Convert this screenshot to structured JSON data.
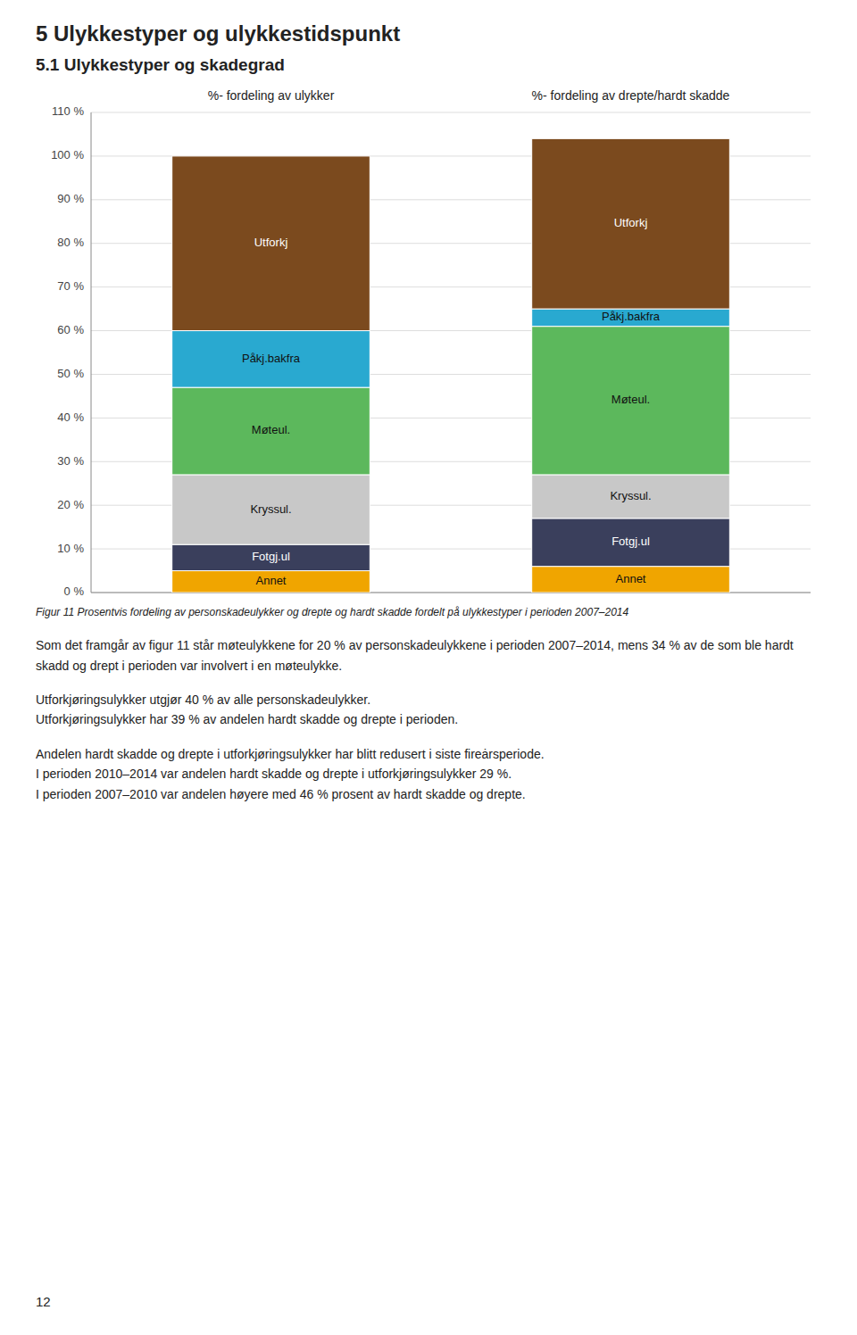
{
  "chart_data": {
    "type": "bar",
    "stacked": true,
    "title": "5 Ulykkestyper og ulykkestidspunkt",
    "subtitle": "5.1 Ulykkestyper og skadegrad",
    "categories": [
      "%- fordeling av ulykker",
      "%- fordeling av drepte/hardt skadde"
    ],
    "series": [
      {
        "name": "Annet",
        "color": "#f0a500",
        "values": [
          5,
          6
        ]
      },
      {
        "name": "Fotgj.ul",
        "color": "#3a3f5c",
        "values": [
          6,
          11
        ]
      },
      {
        "name": "Kryssul.",
        "color": "#c8c8c8",
        "values": [
          16,
          10
        ]
      },
      {
        "name": "Møteul.",
        "color": "#5cb85c",
        "values": [
          20,
          34
        ]
      },
      {
        "name": "Påkj.bakfra",
        "color": "#29a9d0",
        "values": [
          13,
          4
        ]
      },
      {
        "name": "Utforkj",
        "color": "#7b4a1e",
        "values": [
          40,
          39
        ]
      }
    ],
    "ylim": [
      0,
      110
    ],
    "yticks": [
      {
        "value": 0,
        "label": "0 %"
      },
      {
        "value": 10,
        "label": "10 %"
      },
      {
        "value": 20,
        "label": "20 %"
      },
      {
        "value": 30,
        "label": "30 %"
      },
      {
        "value": 40,
        "label": "40 %"
      },
      {
        "value": 50,
        "label": "50 %"
      },
      {
        "value": 60,
        "label": "60 %"
      },
      {
        "value": 70,
        "label": "70 %"
      },
      {
        "value": 80,
        "label": "80 %"
      },
      {
        "value": 90,
        "label": "90 %"
      },
      {
        "value": 100,
        "label": "100 %"
      },
      {
        "value": 110,
        "label": "110 %"
      }
    ],
    "grid": true,
    "annotations": [
      "Figur 11 Prosentvis fordeling av personskadeulykker og drepte og hardt skadde fordelt på ulykkestyper i perioden 2007–2014",
      "Som det framgår av figur 11 står møteulykkene for 20 % av personskadeulykkene i perioden 2007–2014, mens 34 % av de som ble hardt skadd og drept i perioden var involvert i en møteulykke.",
      "Utforkjøringsulykker utgjør 40 % av alle personskadeulykker.\nUtforkjøringsulykker har 39 % av andelen hardt skadde og drepte i perioden.",
      "Andelen hardt skadde og drepte i utforkjøringsulykker har blitt redusert i siste fireȧrsperiode.\nI perioden 2010–2014 var andelen hardt skadde og drepte i utforkjøringsulykker 29 %.\nI perioden 2007–2010 var andelen høyere med 46 % prosent av hardt skadde og drepte.",
      "12"
    ]
  }
}
